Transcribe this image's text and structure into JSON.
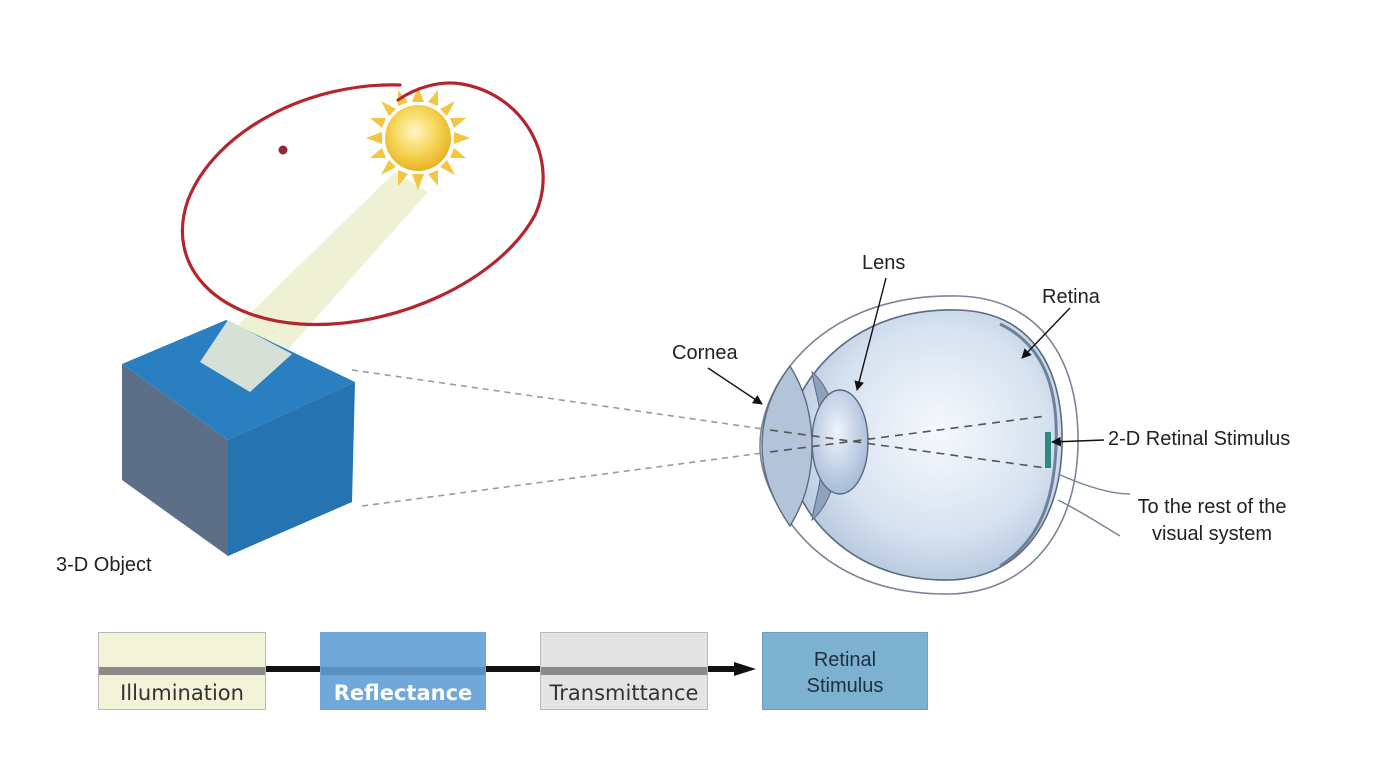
{
  "colors": {
    "annotation": "#b3262d",
    "cube_top": "#2a7fc0",
    "cube_front": "#5c6f86",
    "cube_right": "#2573b0",
    "beam": "#eef0d2",
    "illumination_box": "#f2f3d9",
    "reflectance_box": "#6fa8d9",
    "transmittance_box": "#e4e4e4",
    "retinal_box": "#7cb1d0",
    "eye_fill": "#c8d8ec",
    "eye_stroke": "#5a6a80"
  },
  "icons": {
    "sun": "sun-icon",
    "cube": "cube-icon",
    "eye": "eye-icon"
  },
  "labels": {
    "object": "3-D Object",
    "lens": "Lens",
    "retina": "Retina",
    "cornea": "Cornea",
    "retinal_stimulus_2d": "2-D Retinal Stimulus",
    "rest_line1": "To the rest of the",
    "rest_line2": "visual system"
  },
  "flow": {
    "illumination": "Illumination",
    "reflectance": "Reflectance",
    "transmittance": "Transmittance",
    "retinal_line1": "Retinal",
    "retinal_line2": "Stimulus"
  }
}
